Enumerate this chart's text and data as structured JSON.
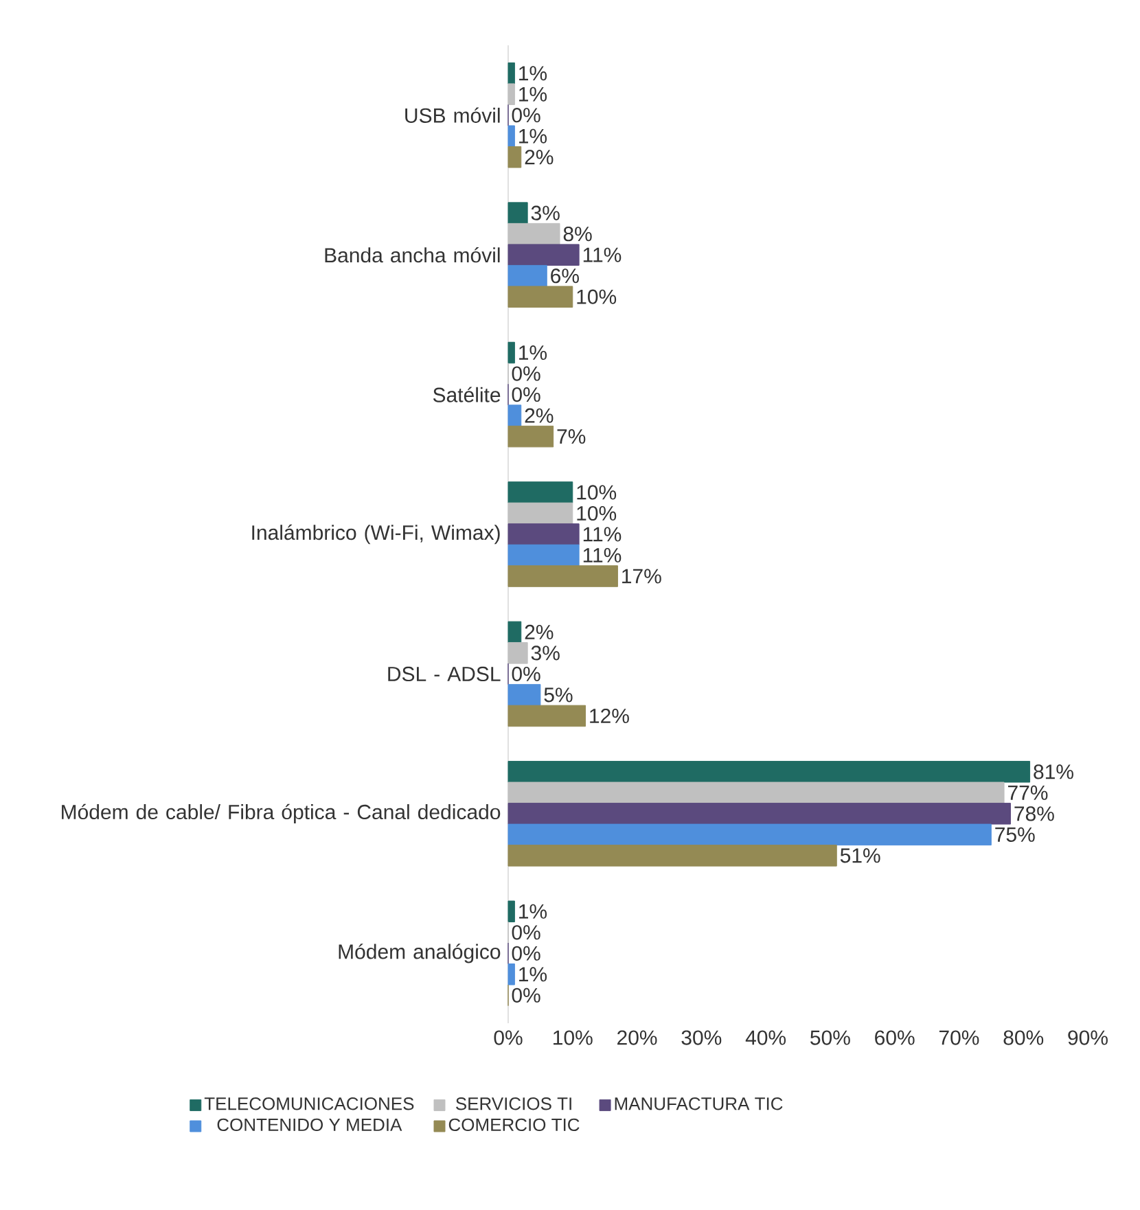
{
  "chart_data": {
    "type": "bar",
    "orientation": "horizontal",
    "categories": [
      "USB móvil",
      "Banda ancha móvil",
      "Satélite",
      "Inalámbrico (Wi-Fi, Wimax)",
      "DSL - ADSL",
      "Módem de cable/ Fibra óptica - Canal dedicado",
      "Módem analógico"
    ],
    "series": [
      {
        "name": "TELECOMUNICACIONES",
        "color": "#1f6b63",
        "values": [
          1,
          3,
          1,
          10,
          2,
          81,
          1
        ],
        "value_labels": [
          "1%",
          "3%",
          "1%",
          "10%",
          "2%",
          "81%",
          "1%"
        ]
      },
      {
        "name": "SERVICIOS TI",
        "color": "#c0c0c0",
        "values": [
          1,
          8,
          0,
          10,
          3,
          77,
          0
        ],
        "value_labels": [
          "1%",
          "8%",
          "0%",
          "10%",
          "3%",
          "77%",
          "0%"
        ]
      },
      {
        "name": "MANUFACTURA TIC",
        "color": "#5b4a7e",
        "values": [
          0,
          11,
          0,
          11,
          0,
          78,
          0
        ],
        "value_labels": [
          "0%",
          "11%",
          "0%",
          "11%",
          "0%",
          "78%",
          "0%"
        ]
      },
      {
        "name": "CONTENIDO Y MEDIA",
        "color": "#4f8fdc",
        "values": [
          1,
          6,
          2,
          11,
          5,
          75,
          1
        ],
        "value_labels": [
          "1%",
          "6%",
          "2%",
          "11%",
          "5%",
          "75%",
          "1%"
        ]
      },
      {
        "name": "COMERCIO TIC",
        "color": "#948a54",
        "values": [
          2,
          10,
          7,
          17,
          12,
          51,
          0
        ],
        "value_labels": [
          "2%",
          "10%",
          "7%",
          "17%",
          "12%",
          "51%",
          "0%"
        ]
      }
    ],
    "xlim": [
      0,
      90
    ],
    "xticks": [
      {
        "value": 0,
        "label": "0%"
      },
      {
        "value": 10,
        "label": "10%"
      },
      {
        "value": 20,
        "label": "20%"
      },
      {
        "value": 30,
        "label": "30%"
      },
      {
        "value": 40,
        "label": "40%"
      },
      {
        "value": 50,
        "label": "50%"
      },
      {
        "value": 60,
        "label": "60%"
      },
      {
        "value": 70,
        "label": "70%"
      },
      {
        "value": 80,
        "label": "80%"
      },
      {
        "value": 90,
        "label": "90%"
      }
    ],
    "grid": false,
    "legend": "bottom"
  }
}
